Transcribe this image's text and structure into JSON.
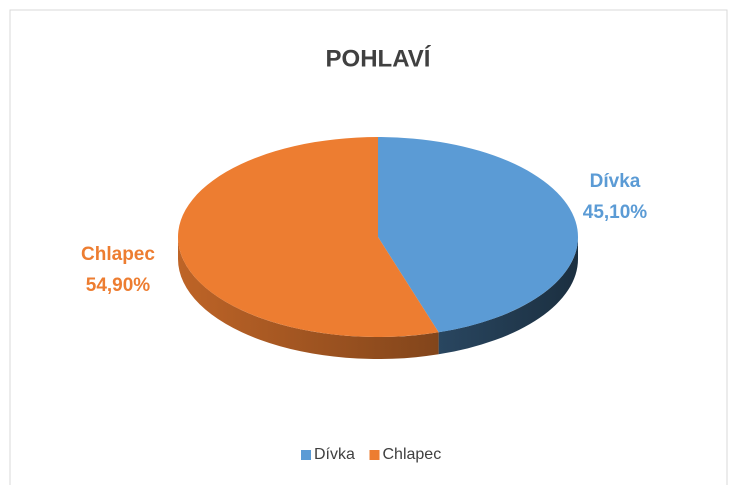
{
  "chart_data": {
    "type": "pie",
    "title": "POHLAVÍ",
    "categories": [
      "Dívka",
      "Chlapec"
    ],
    "values": [
      45.1,
      54.9
    ],
    "value_labels": [
      "45,10%",
      "54,90%"
    ],
    "colors": [
      "#5b9bd5",
      "#ed7d31"
    ],
    "legend": "bottom"
  }
}
